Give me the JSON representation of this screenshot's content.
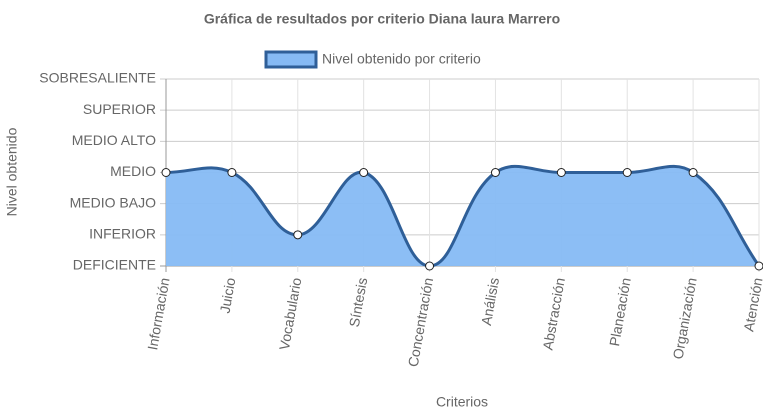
{
  "chart_data": {
    "type": "area",
    "title": "Gráfica de resultados por criterio Diana laura Marrero",
    "x_label": "Criterios",
    "y_label": "Nivel obtenido",
    "categories": [
      "Información",
      "Juicio",
      "Vocabulario",
      "Síntesis",
      "Concentración",
      "Análisis",
      "Abstracción",
      "Planeación",
      "Organización",
      "Atención"
    ],
    "series": [
      {
        "name": "Nivel obtenido por criterio",
        "color": "#2f5f98",
        "fill": "#86baf4",
        "values": [
          3,
          3,
          1,
          3,
          0,
          3,
          3,
          3,
          3,
          0
        ]
      }
    ],
    "ylim": [
      0,
      6
    ],
    "yticks": [
      {
        "value": 0,
        "label": "DEFICIENTE"
      },
      {
        "value": 1,
        "label": "INFERIOR"
      },
      {
        "value": 2,
        "label": "MEDIO BAJO"
      },
      {
        "value": 3,
        "label": "MEDIO"
      },
      {
        "value": 4,
        "label": "MEDIO ALTO"
      },
      {
        "value": 5,
        "label": "SUPERIOR"
      },
      {
        "value": 6,
        "label": "SOBRESALIENTE"
      }
    ],
    "grid": true,
    "legend": "top"
  }
}
